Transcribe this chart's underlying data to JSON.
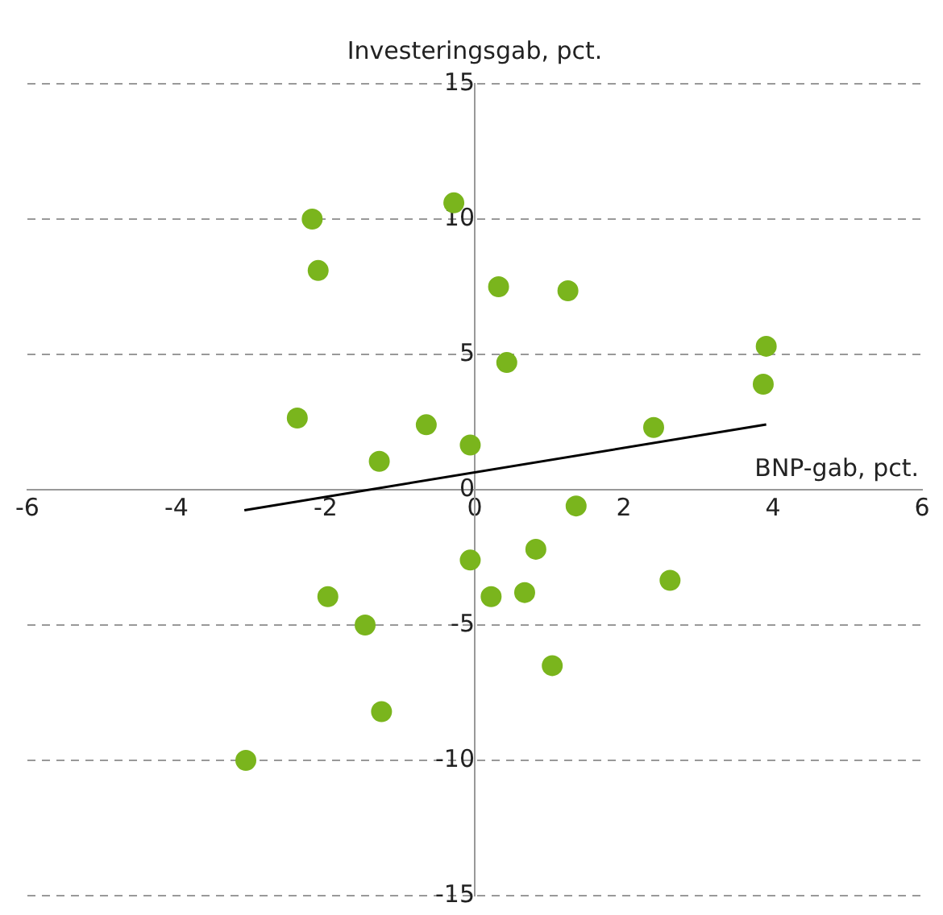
{
  "chart_data": {
    "type": "scatter",
    "xlabel": "BNP-gab, pct.",
    "ylabel": "Investeringsgab, pct.",
    "xlim": [
      -6,
      6
    ],
    "xticks": [
      -6,
      -4,
      -2,
      0,
      2,
      4,
      6
    ],
    "ylim": [
      -15,
      15
    ],
    "yticks": [
      -15,
      -10,
      -5,
      0,
      5,
      10,
      15
    ],
    "grid": "y",
    "legend": false,
    "series": [
      {
        "color": "#7ab51d",
        "marker": "circle",
        "x": [
          -2.18,
          -0.28,
          -2.1,
          0.32,
          1.25,
          0.43,
          3.91,
          3.87,
          -2.38,
          -0.65,
          -0.06,
          2.4,
          -1.28,
          1.36,
          -0.06,
          0.82,
          2.62,
          -1.97,
          0.22,
          0.67,
          -1.47,
          1.04,
          -1.25,
          -3.07
        ],
        "values": [
          10.0,
          10.6,
          8.1,
          7.5,
          7.35,
          4.7,
          5.3,
          3.9,
          2.65,
          2.4,
          1.65,
          2.3,
          1.05,
          -0.6,
          -2.6,
          -2.2,
          -3.35,
          -3.95,
          -3.95,
          -3.8,
          -5.0,
          -6.5,
          -8.2,
          -10.0
        ]
      },
      {
        "type": "line",
        "color": "#000000",
        "marker": "none",
        "x": [
          -3.09,
          3.91
        ],
        "values": [
          -0.76,
          2.41
        ]
      }
    ]
  }
}
